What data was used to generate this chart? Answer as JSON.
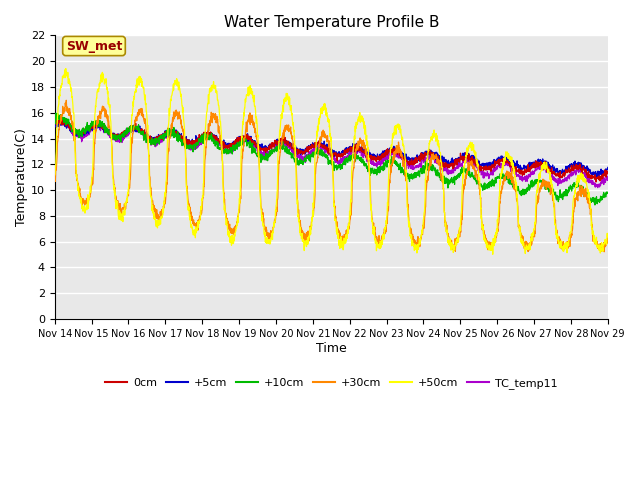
{
  "title": "Water Temperature Profile B",
  "xlabel": "Time",
  "ylabel": "Temperature(C)",
  "ylim": [
    0,
    22
  ],
  "yticks": [
    0,
    2,
    4,
    6,
    8,
    10,
    12,
    14,
    16,
    18,
    20,
    22
  ],
  "n_days": 15,
  "xtick_labels": [
    "Nov 14",
    "Nov 15",
    "Nov 16",
    "Nov 17",
    "Nov 18",
    "Nov 19",
    "Nov 20",
    "Nov 21",
    "Nov 22",
    "Nov 23",
    "Nov 24",
    "Nov 25",
    "Nov 26",
    "Nov 27",
    "Nov 28",
    "Nov 29"
  ],
  "series_colors": {
    "0cm": "#cc0000",
    "+5cm": "#0000cc",
    "+10cm": "#00bb00",
    "+30cm": "#ff8800",
    "+50cm": "#ffff00",
    "TC_temp11": "#aa00cc"
  },
  "bg_color": "#e8e8e8",
  "grid_color": "#ffffff",
  "annotation_text": "SW_met",
  "annotation_color": "#990000",
  "annotation_bg": "#ffff99",
  "annotation_border": "#aa8800",
  "legend_entries": [
    "0cm",
    "+5cm",
    "+10cm",
    "+30cm",
    "+50cm",
    "TC_temp11"
  ],
  "fig_bg": "#ffffff"
}
